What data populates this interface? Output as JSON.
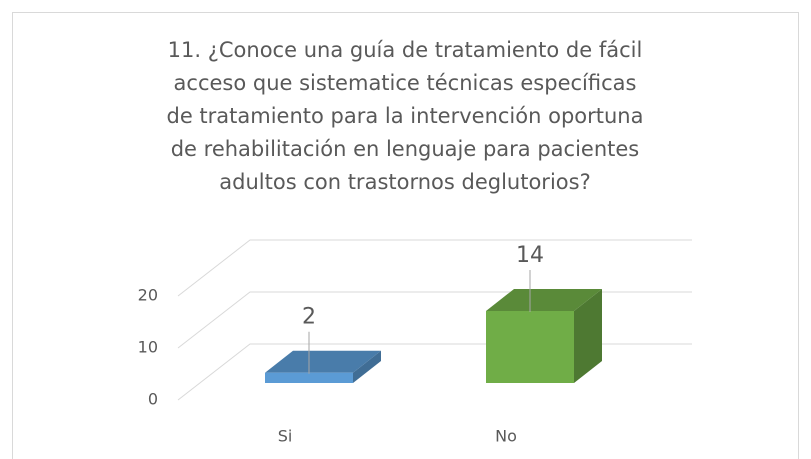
{
  "chart_data": {
    "type": "bar3d",
    "title": "11. ¿Conoce una guía de tratamiento de fácil acceso que sistematice técnicas específicas de tratamiento para la intervención oportuna de rehabilitación en lenguaje para pacientes adultos con trastornos deglutorios?",
    "categories": [
      "Si",
      "No"
    ],
    "values": [
      2,
      14
    ],
    "colors": [
      "#5b9bd5",
      "#70ad47"
    ],
    "ylim": [
      0,
      20
    ],
    "yticks": [
      0,
      10,
      20
    ],
    "grid": true
  }
}
